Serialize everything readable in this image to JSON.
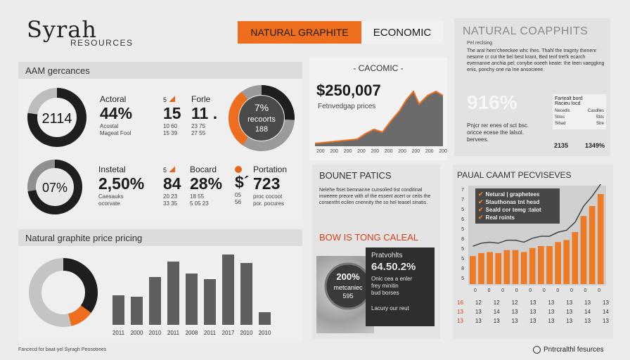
{
  "brand": {
    "name": "Syrah",
    "sub": "RESOURCES"
  },
  "header": {
    "tag_orange": "NATURAL GRAPHITE",
    "tag_econ": "ECONOMIC"
  },
  "aam": {
    "title": "AAM gercances",
    "donut1_value": "2114",
    "col1_label": "Actoral",
    "col1_value": "44%",
    "col1_sub1": "Acostal",
    "col1_sub2": "Mageat Fool",
    "col2_label": "5",
    "col2_value": "15",
    "col2_sub1": "10 60",
    "col2_sub2": "15 39",
    "col3_label": "Forle",
    "col3_value": "11 .",
    "col3_sub1": "23 75",
    "col3_sub2": "27 55",
    "donut2_line1": "7%",
    "donut2_line2": "recoorts",
    "donut2_line3": "188",
    "donut3_value": "07%",
    "col4_label": "Instetal",
    "col4_value": "2,50%",
    "col4_sub1": "Caesauks",
    "col4_sub2": "ocorvate",
    "col5_label": "5",
    "col5_value": "84",
    "col5_sub1": "20 23",
    "col5_sub2": "33 35",
    "col6_label": "Bocard",
    "col6_value": "28%",
    "col6_sub1": "18 55",
    "col6_sub2": "5 05 23",
    "col7_value": "$´",
    "col7_sub1": "05",
    "col7_sub2": "56",
    "col8_label": "Portation",
    "col8_value": "723",
    "col8_sub1": "proc cocoot",
    "col8_sub2": "por. pocures"
  },
  "price_pricing": {
    "title": "Natural graphite price pricing"
  },
  "bar_chart": {
    "x_labels": [
      "2011",
      "2000",
      "2010",
      "2011",
      "2008",
      "2011",
      "2017",
      "2010",
      "2010"
    ],
    "values": [
      42,
      40,
      68,
      90,
      73,
      65,
      100,
      88,
      18
    ]
  },
  "cacomic": {
    "title": "CACOMIC",
    "value": "$250,007",
    "sub": "Fetnvedgap prices",
    "x_labels": [
      "200",
      "200",
      "200",
      "200",
      "200",
      "200",
      "200",
      "200",
      "200",
      "200"
    ]
  },
  "natural_coapphits": {
    "title": "NATURAL COAPPHITS",
    "intro_head": "Pel reclsing",
    "intro": "The ara! hem'cheeckee whc Ihes. Thahl the tragrity thenenr nesorre cr cut the bel best krant, Bed tenf tret'k ecarch evernanne anchia pel; conybe ooeeh keate: Ihe teen vaeggkng enis, ponchy one ria Ine ansocieee.",
    "percent": "916%",
    "side_head": "Fartealt bord",
    "side_sub": "Racieu locd",
    "side_rows": [
      [
        "Necedls",
        "Casdlles"
      ],
      [
        "Stres",
        "Stits"
      ],
      [
        "Sibad",
        "Stre"
      ]
    ],
    "side_foot": [
      "2135",
      "1349%"
    ],
    "footer": "Pnjcr rer enes of sct bsc. oricce ecese the lalsol. bervees."
  },
  "bounet": {
    "title": "BOUNET PATICS",
    "text": "Nelehe ftset bemnanne cunsolied tist conditinal inweeee preore with of the essent acert or ceits the coraentht ecilen cnennity the so hel teasel sinatis.",
    "headline": "BOW IS TONG CALEAL",
    "badge_line1": "200%",
    "badge_line2": "metcaniec",
    "badge_line3": "595",
    "box_title": "Pratvohlts",
    "box_value": "64.50.2%",
    "box_lines": [
      "Onic cea a enler",
      "frey minitin",
      "bud borses"
    ],
    "box_foot": "Lacury our reut"
  },
  "paual": {
    "title": "PAUAL CAAMT PECVISEVES",
    "legend": [
      "Netural | graphetees",
      "Stauthonas tnt hesd",
      "Seald cor temg :talot",
      "Real roints"
    ],
    "values": [
      28,
      31,
      32,
      31,
      34,
      34,
      32,
      36,
      38,
      38,
      42,
      44,
      52,
      68,
      78,
      90
    ],
    "x_labels": [
      "0",
      "0",
      "0",
      "0",
      "0",
      "0",
      "0",
      "0",
      "0",
      "0"
    ],
    "y_labels": [
      "7",
      "7",
      "5",
      "6",
      "5",
      "8",
      "5",
      "5",
      "8",
      "5"
    ],
    "table_rows": [
      [
        "16",
        "12",
        "12",
        "12",
        "13",
        "13",
        "13",
        "13",
        "13"
      ],
      [
        "13",
        "13",
        "14",
        "13",
        "13",
        "13",
        "13",
        "14",
        "14"
      ],
      [
        "13",
        "13",
        "13",
        "13",
        "13",
        "13",
        "13",
        "13",
        "13"
      ]
    ]
  },
  "footer": {
    "left": "Fancecd for baat-yel Syragh Peosotrees",
    "right": "Pntrcralthl fesurces"
  }
}
